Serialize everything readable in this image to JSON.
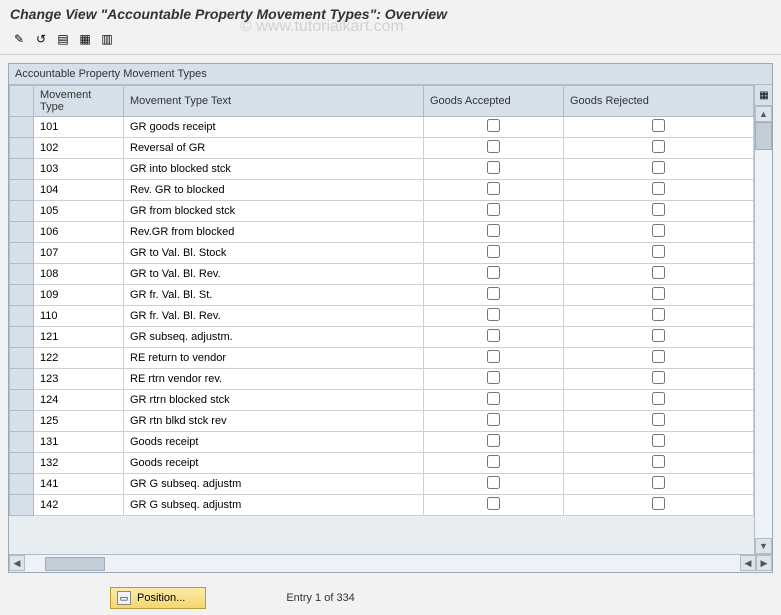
{
  "header": {
    "title": "Change View \"Accountable Property Movement Types\": Overview"
  },
  "watermark": "© www.tutorialkart.com",
  "toolbar": {
    "icons": [
      "✎",
      "↺",
      "▤",
      "▦",
      "▥"
    ]
  },
  "pane": {
    "title": "Accountable Property Movement Types"
  },
  "columns": {
    "mvt": "Movement Type",
    "txt": "Movement Type Text",
    "acc": "Goods Accepted",
    "rej": "Goods Rejected"
  },
  "rows": [
    {
      "mvt": "101",
      "txt": "GR goods receipt",
      "acc": false,
      "rej": false
    },
    {
      "mvt": "102",
      "txt": "Reversal of GR",
      "acc": false,
      "rej": false
    },
    {
      "mvt": "103",
      "txt": "GR into blocked stck",
      "acc": false,
      "rej": false
    },
    {
      "mvt": "104",
      "txt": "Rev. GR to blocked",
      "acc": false,
      "rej": false
    },
    {
      "mvt": "105",
      "txt": "GR from blocked stck",
      "acc": false,
      "rej": false
    },
    {
      "mvt": "106",
      "txt": "Rev.GR from blocked",
      "acc": false,
      "rej": false
    },
    {
      "mvt": "107",
      "txt": "GR to Val. Bl. Stock",
      "acc": false,
      "rej": false
    },
    {
      "mvt": "108",
      "txt": "GR to Val. Bl. Rev.",
      "acc": false,
      "rej": false
    },
    {
      "mvt": "109",
      "txt": "GR fr. Val. Bl. St.",
      "acc": false,
      "rej": false
    },
    {
      "mvt": "110",
      "txt": "GR fr. Val. Bl. Rev.",
      "acc": false,
      "rej": false
    },
    {
      "mvt": "121",
      "txt": "GR subseq. adjustm.",
      "acc": false,
      "rej": false
    },
    {
      "mvt": "122",
      "txt": "RE return to vendor",
      "acc": false,
      "rej": false
    },
    {
      "mvt": "123",
      "txt": "RE rtrn vendor rev.",
      "acc": false,
      "rej": false
    },
    {
      "mvt": "124",
      "txt": "GR rtrn blocked stck",
      "acc": false,
      "rej": false
    },
    {
      "mvt": "125",
      "txt": "GR rtn blkd stck rev",
      "acc": false,
      "rej": false
    },
    {
      "mvt": "131",
      "txt": "Goods receipt",
      "acc": false,
      "rej": false
    },
    {
      "mvt": "132",
      "txt": "Goods receipt",
      "acc": false,
      "rej": false
    },
    {
      "mvt": "141",
      "txt": "GR G subseq. adjustm",
      "acc": false,
      "rej": false
    },
    {
      "mvt": "142",
      "txt": "GR G subseq. adjustm",
      "acc": false,
      "rej": false
    }
  ],
  "footer": {
    "position_label": "Position...",
    "entry_text": "Entry 1 of 334"
  },
  "colors": {
    "header_bg": "#d6e0ea",
    "border": "#b0bcc8",
    "row_bg": "#ffffff",
    "pane_bg": "#e8edf2"
  }
}
